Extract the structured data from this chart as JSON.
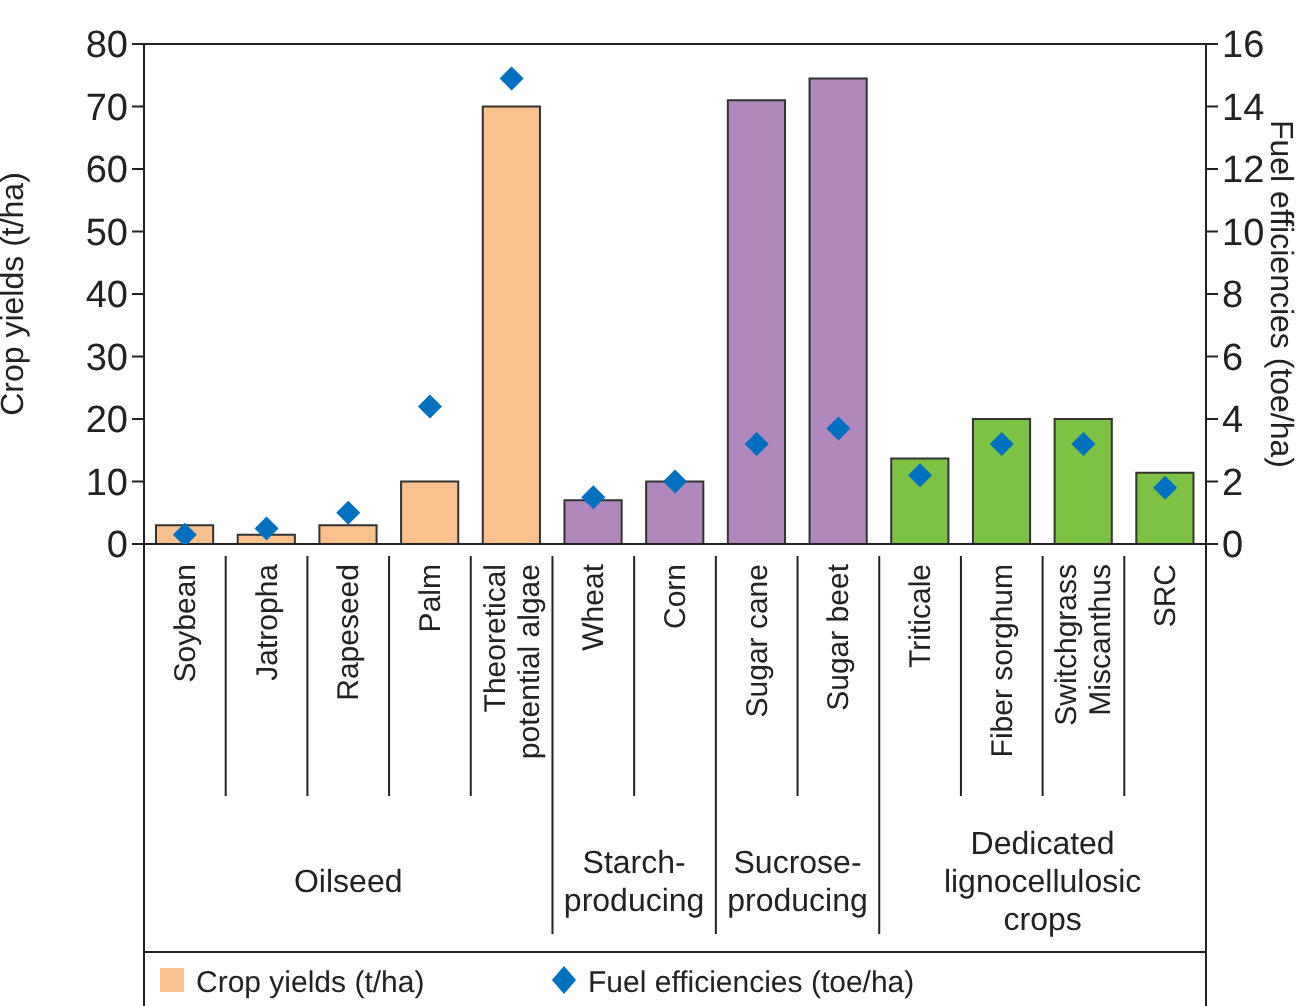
{
  "chart_data": {
    "type": "bar",
    "ylabel": "Crop yields (t/ha)",
    "y2label": "Fuel efficiencies (toe/ha)",
    "categories": [
      "Soybean",
      "Jatropha",
      "Rapeseed",
      "Palm",
      "Theoretical potential algae",
      "Wheat",
      "Corn",
      "Sugar cane",
      "Sugar beet",
      "Triticale",
      "Fiber sorghum",
      "Switchgrass Miscanthus",
      "SRC"
    ],
    "series": [
      {
        "name": "Crop yields (t/ha)",
        "color": "#f9c18d",
        "colors": [
          "#f9c18d",
          "#f9c18d",
          "#f9c18d",
          "#f9c18d",
          "#f9c18d",
          "#b088bc",
          "#b088bc",
          "#b088bc",
          "#b088bc",
          "#7dc242",
          "#7dc242",
          "#7dc242",
          "#7dc242"
        ],
        "values": [
          3,
          1.5,
          3,
          10,
          70,
          7,
          10,
          71,
          74.5,
          13.7,
          20,
          20,
          11.4
        ]
      },
      {
        "name": "Fuel efficiencies (toe/ha)",
        "type": "scatter",
        "axis": "y2",
        "color": "#0070c0",
        "marker": "diamond",
        "values": [
          0.3,
          0.5,
          1.0,
          4.4,
          14.9,
          1.5,
          2.0,
          3.2,
          3.7,
          2.2,
          3.2,
          3.2,
          1.8
        ]
      }
    ],
    "ylim": [
      0,
      80
    ],
    "yticks": [
      0,
      10,
      20,
      30,
      40,
      50,
      60,
      70,
      80
    ],
    "y2lim": [
      0,
      16
    ],
    "y2ticks": [
      0,
      2,
      4,
      6,
      8,
      10,
      12,
      14,
      16
    ],
    "legend": "bottom",
    "annotations": [
      "Oilseed",
      "Starch-producing",
      "Sucrose-producing",
      "Dedicated lignocellulosic crops"
    ]
  }
}
